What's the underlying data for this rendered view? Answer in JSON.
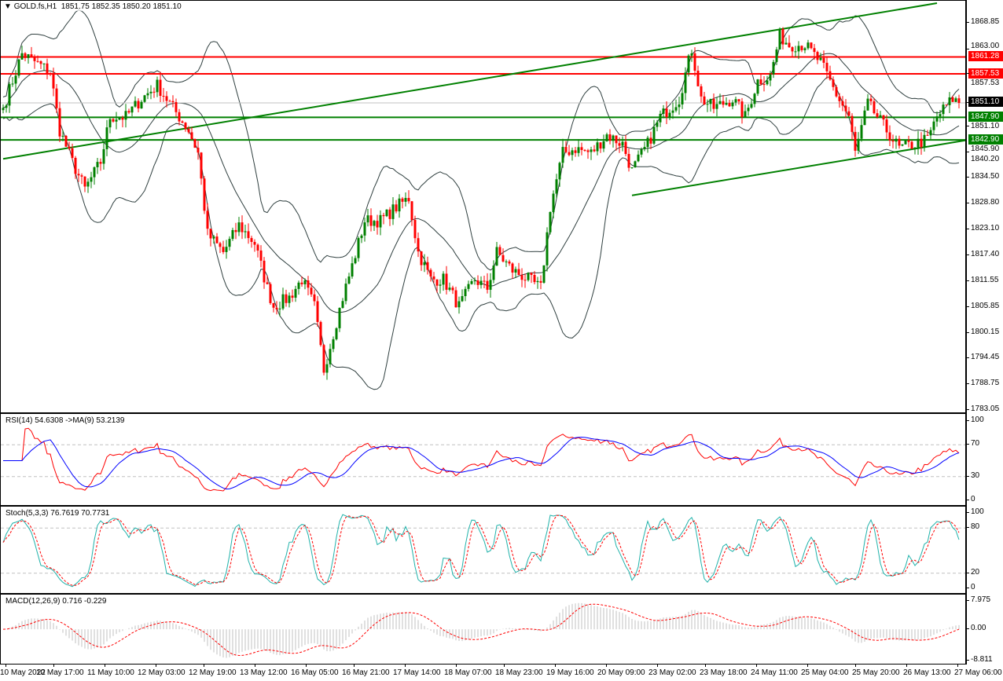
{
  "header": {
    "symbol": "GOLD.fs,H1",
    "ohlc": "1851.75 1852.35 1850.20 1851.10"
  },
  "colors": {
    "bull": "#008000",
    "bear": "#ff0000",
    "band": "#2f3f3f",
    "support": "#008000",
    "resistance": "#ff0000",
    "rsi": "#ff0000",
    "rsi_ma": "#0000ff",
    "stoch_main": "#20b2aa",
    "stoch_signal": "#ff0000",
    "macd_hist": "#c0c0c0",
    "macd_signal": "#ff0000"
  },
  "chart_data": {
    "type": "candlestick",
    "title": "GOLD.fs,H1",
    "ylim": [
      1781,
      1874
    ],
    "price_ticks": [
      "1868.85",
      "1863.00",
      "1857.53",
      "1851.10",
      "1845.90",
      "1840.20",
      "1834.50",
      "1828.80",
      "1823.10",
      "1817.40",
      "1811.55",
      "1805.85",
      "1800.15",
      "1794.45",
      "1788.75",
      "1783.05"
    ],
    "close_anchors": [
      [
        0,
        1850
      ],
      [
        6,
        1862
      ],
      [
        15,
        1858
      ],
      [
        18,
        1845
      ],
      [
        22,
        1838
      ],
      [
        26,
        1832
      ],
      [
        31,
        1838
      ],
      [
        34,
        1848
      ],
      [
        39,
        1848
      ],
      [
        44,
        1852
      ],
      [
        49,
        1855
      ],
      [
        54,
        1850
      ],
      [
        59,
        1845
      ],
      [
        62,
        1840
      ],
      [
        65,
        1822
      ],
      [
        70,
        1818
      ],
      [
        75,
        1824
      ],
      [
        80,
        1820
      ],
      [
        84,
        1810
      ],
      [
        86,
        1806
      ],
      [
        91,
        1808
      ],
      [
        95,
        1812
      ],
      [
        99,
        1806
      ],
      [
        102,
        1792
      ],
      [
        105,
        1800
      ],
      [
        108,
        1808
      ],
      [
        111,
        1815
      ],
      [
        115,
        1825
      ],
      [
        120,
        1825
      ],
      [
        125,
        1828
      ],
      [
        129,
        1830
      ],
      [
        132,
        1818
      ],
      [
        136,
        1812
      ],
      [
        140,
        1812
      ],
      [
        145,
        1806
      ],
      [
        150,
        1812
      ],
      [
        154,
        1810
      ],
      [
        157,
        1818
      ],
      [
        162,
        1814
      ],
      [
        167,
        1812
      ],
      [
        171,
        1810
      ],
      [
        174,
        1828
      ],
      [
        178,
        1840
      ],
      [
        182,
        1841
      ],
      [
        187,
        1840
      ],
      [
        192,
        1844
      ],
      [
        197,
        1842
      ],
      [
        200,
        1836
      ],
      [
        205,
        1842
      ],
      [
        209,
        1848
      ],
      [
        215,
        1852
      ],
      [
        219,
        1863
      ],
      [
        222,
        1852
      ],
      [
        226,
        1850
      ],
      [
        232,
        1852
      ],
      [
        236,
        1848
      ],
      [
        240,
        1856
      ],
      [
        244,
        1857
      ],
      [
        247,
        1866
      ],
      [
        250,
        1864
      ],
      [
        255,
        1864
      ],
      [
        260,
        1860
      ],
      [
        265,
        1853
      ],
      [
        269,
        1848
      ],
      [
        271,
        1840
      ],
      [
        275,
        1851
      ],
      [
        280,
        1846
      ],
      [
        285,
        1841
      ],
      [
        290,
        1842
      ],
      [
        294,
        1843
      ],
      [
        297,
        1848
      ],
      [
        302,
        1852
      ],
      [
        304,
        1851.1
      ]
    ],
    "horizontal_levels": [
      {
        "price": 1861.28,
        "label": "1861.28",
        "kind": "resistance"
      },
      {
        "price": 1857.53,
        "label": "1857.53",
        "kind": "resistance"
      },
      {
        "price": 1847.9,
        "label": "1847.90",
        "kind": "support"
      },
      {
        "price": 1842.9,
        "label": "1842.90",
        "kind": "support"
      }
    ],
    "current_price": {
      "price": 1851.1,
      "label": "1851.10"
    },
    "trendlines": [
      {
        "from": [
          0,
          1838.7
        ],
        "to": [
          297,
          1873.2
        ]
      },
      {
        "from": [
          200,
          1830.6
        ],
        "to": [
          307,
          1842.9
        ]
      }
    ],
    "bollinger": {
      "period": 20,
      "deviation": 2
    },
    "time_labels": [
      {
        "bar": 1,
        "label": "10 May 2022"
      },
      {
        "bar": 17,
        "label": "10 May 17:00"
      },
      {
        "bar": 34,
        "label": "11 May 10:00"
      },
      {
        "bar": 51,
        "label": "12 May 03:00"
      },
      {
        "bar": 67,
        "label": "12 May 19:00"
      },
      {
        "bar": 84,
        "label": "13 May 12:00"
      },
      {
        "bar": 101,
        "label": "16 May 05:00"
      },
      {
        "bar": 117,
        "label": "16 May 21:00"
      },
      {
        "bar": 134,
        "label": "17 May 14:00"
      },
      {
        "bar": 151,
        "label": "18 May 07:00"
      },
      {
        "bar": 167,
        "label": "18 May 23:00"
      },
      {
        "bar": 184,
        "label": "19 May 16:00"
      },
      {
        "bar": 201,
        "label": "20 May 09:00"
      },
      {
        "bar": 218,
        "label": "23 May 02:00"
      },
      {
        "bar": 234,
        "label": "23 May 18:00"
      },
      {
        "bar": 251,
        "label": "24 May 11:00"
      },
      {
        "bar": 268,
        "label": "25 May 04:00"
      },
      {
        "bar": 284,
        "label": "25 May 20:00"
      },
      {
        "bar": 301,
        "label": "26 May 13:00"
      },
      {
        "bar": 318,
        "label": "27 May 06:00"
      }
    ]
  },
  "rsi": {
    "title": "RSI(14) 54.6308  ->MA(9) 53.2139",
    "ticks": [
      "100",
      "70",
      "30",
      "0"
    ],
    "ylim": [
      0,
      100
    ],
    "levels": [
      70,
      30
    ]
  },
  "stoch": {
    "title": "Stoch(5,3,3) 76.7619 70.7731",
    "ticks": [
      "100",
      "80",
      "20",
      "0"
    ],
    "ylim": [
      0,
      100
    ],
    "levels": [
      80,
      20
    ]
  },
  "macd": {
    "title": "MACD(12,26,9) 0.716 -0.229",
    "ticks": [
      "7.975",
      "0.00",
      "-8.811"
    ],
    "ylim": [
      -8.811,
      7.975
    ]
  }
}
